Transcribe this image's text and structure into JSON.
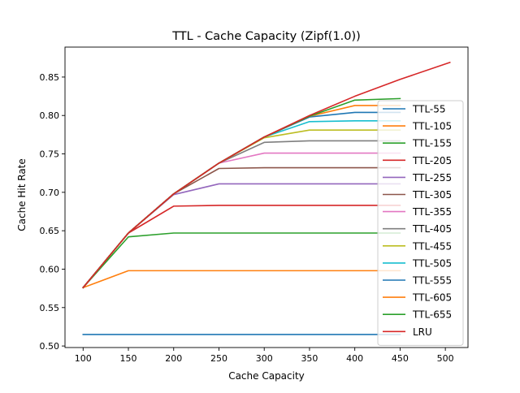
{
  "chart_data": {
    "type": "line",
    "title": "TTL - Cache Capacity (Zipf(1.0))",
    "xlabel": "Cache Capacity",
    "ylabel": "Cache Hit Rate",
    "xlim": [
      80,
      525
    ],
    "ylim": [
      0.498,
      0.889
    ],
    "xticks": [
      100,
      150,
      200,
      250,
      300,
      350,
      400,
      450,
      500
    ],
    "yticks": [
      0.5,
      0.55,
      0.6,
      0.65,
      0.7,
      0.75,
      0.8,
      0.85
    ],
    "grid": false,
    "legend_position": "lower-right",
    "series": [
      {
        "name": "TTL-55",
        "color": "#1f77b4",
        "x": [
          100,
          150,
          200,
          250,
          300,
          350,
          400,
          450
        ],
        "y": [
          0.515,
          0.515,
          0.515,
          0.515,
          0.515,
          0.515,
          0.515,
          0.515
        ]
      },
      {
        "name": "TTL-105",
        "color": "#ff7f0e",
        "x": [
          100,
          150,
          200,
          250,
          300,
          350,
          400,
          450
        ],
        "y": [
          0.576,
          0.598,
          0.598,
          0.598,
          0.598,
          0.598,
          0.598,
          0.598
        ]
      },
      {
        "name": "TTL-155",
        "color": "#2ca02c",
        "x": [
          100,
          150,
          200,
          250,
          300,
          350,
          400,
          450
        ],
        "y": [
          0.576,
          0.642,
          0.647,
          0.647,
          0.647,
          0.647,
          0.647,
          0.647
        ]
      },
      {
        "name": "TTL-205",
        "color": "#d62728",
        "x": [
          100,
          150,
          200,
          250,
          300,
          350,
          400,
          450
        ],
        "y": [
          0.576,
          0.647,
          0.682,
          0.683,
          0.683,
          0.683,
          0.683,
          0.683
        ]
      },
      {
        "name": "TTL-255",
        "color": "#9467bd",
        "x": [
          100,
          150,
          200,
          250,
          300,
          350,
          400,
          450
        ],
        "y": [
          0.576,
          0.647,
          0.697,
          0.711,
          0.711,
          0.711,
          0.711,
          0.711
        ]
      },
      {
        "name": "TTL-305",
        "color": "#8c564b",
        "x": [
          100,
          150,
          200,
          250,
          300,
          350,
          400,
          450
        ],
        "y": [
          0.576,
          0.647,
          0.698,
          0.731,
          0.732,
          0.732,
          0.732,
          0.732
        ]
      },
      {
        "name": "TTL-355",
        "color": "#e377c2",
        "x": [
          100,
          150,
          200,
          250,
          300,
          350,
          400,
          450
        ],
        "y": [
          0.576,
          0.647,
          0.698,
          0.738,
          0.751,
          0.751,
          0.751,
          0.751
        ]
      },
      {
        "name": "TTL-405",
        "color": "#7f7f7f",
        "x": [
          100,
          150,
          200,
          250,
          300,
          350,
          400,
          450
        ],
        "y": [
          0.576,
          0.647,
          0.698,
          0.738,
          0.765,
          0.767,
          0.767,
          0.767
        ]
      },
      {
        "name": "TTL-455",
        "color": "#bcbd22",
        "x": [
          100,
          150,
          200,
          250,
          300,
          350,
          400,
          450
        ],
        "y": [
          0.576,
          0.647,
          0.698,
          0.738,
          0.771,
          0.781,
          0.781,
          0.781
        ]
      },
      {
        "name": "TTL-505",
        "color": "#17becf",
        "x": [
          100,
          150,
          200,
          250,
          300,
          350,
          400,
          450
        ],
        "y": [
          0.576,
          0.647,
          0.698,
          0.738,
          0.772,
          0.792,
          0.793,
          0.793
        ]
      },
      {
        "name": "TTL-555",
        "color": "#1f77b4",
        "x": [
          100,
          150,
          200,
          250,
          300,
          350,
          400,
          450
        ],
        "y": [
          0.576,
          0.647,
          0.698,
          0.738,
          0.772,
          0.798,
          0.804,
          0.804
        ]
      },
      {
        "name": "TTL-605",
        "color": "#ff7f0e",
        "x": [
          100,
          150,
          200,
          250,
          300,
          350,
          400,
          450
        ],
        "y": [
          0.576,
          0.647,
          0.698,
          0.738,
          0.772,
          0.799,
          0.813,
          0.813
        ]
      },
      {
        "name": "TTL-655",
        "color": "#2ca02c",
        "x": [
          100,
          150,
          200,
          250,
          300,
          350,
          400,
          450
        ],
        "y": [
          0.576,
          0.647,
          0.698,
          0.738,
          0.772,
          0.799,
          0.82,
          0.822
        ]
      },
      {
        "name": "LRU",
        "color": "#d62728",
        "x": [
          100,
          150,
          200,
          250,
          300,
          350,
          400,
          450,
          505
        ],
        "y": [
          0.576,
          0.647,
          0.698,
          0.738,
          0.772,
          0.8,
          0.825,
          0.847,
          0.869
        ]
      }
    ]
  }
}
